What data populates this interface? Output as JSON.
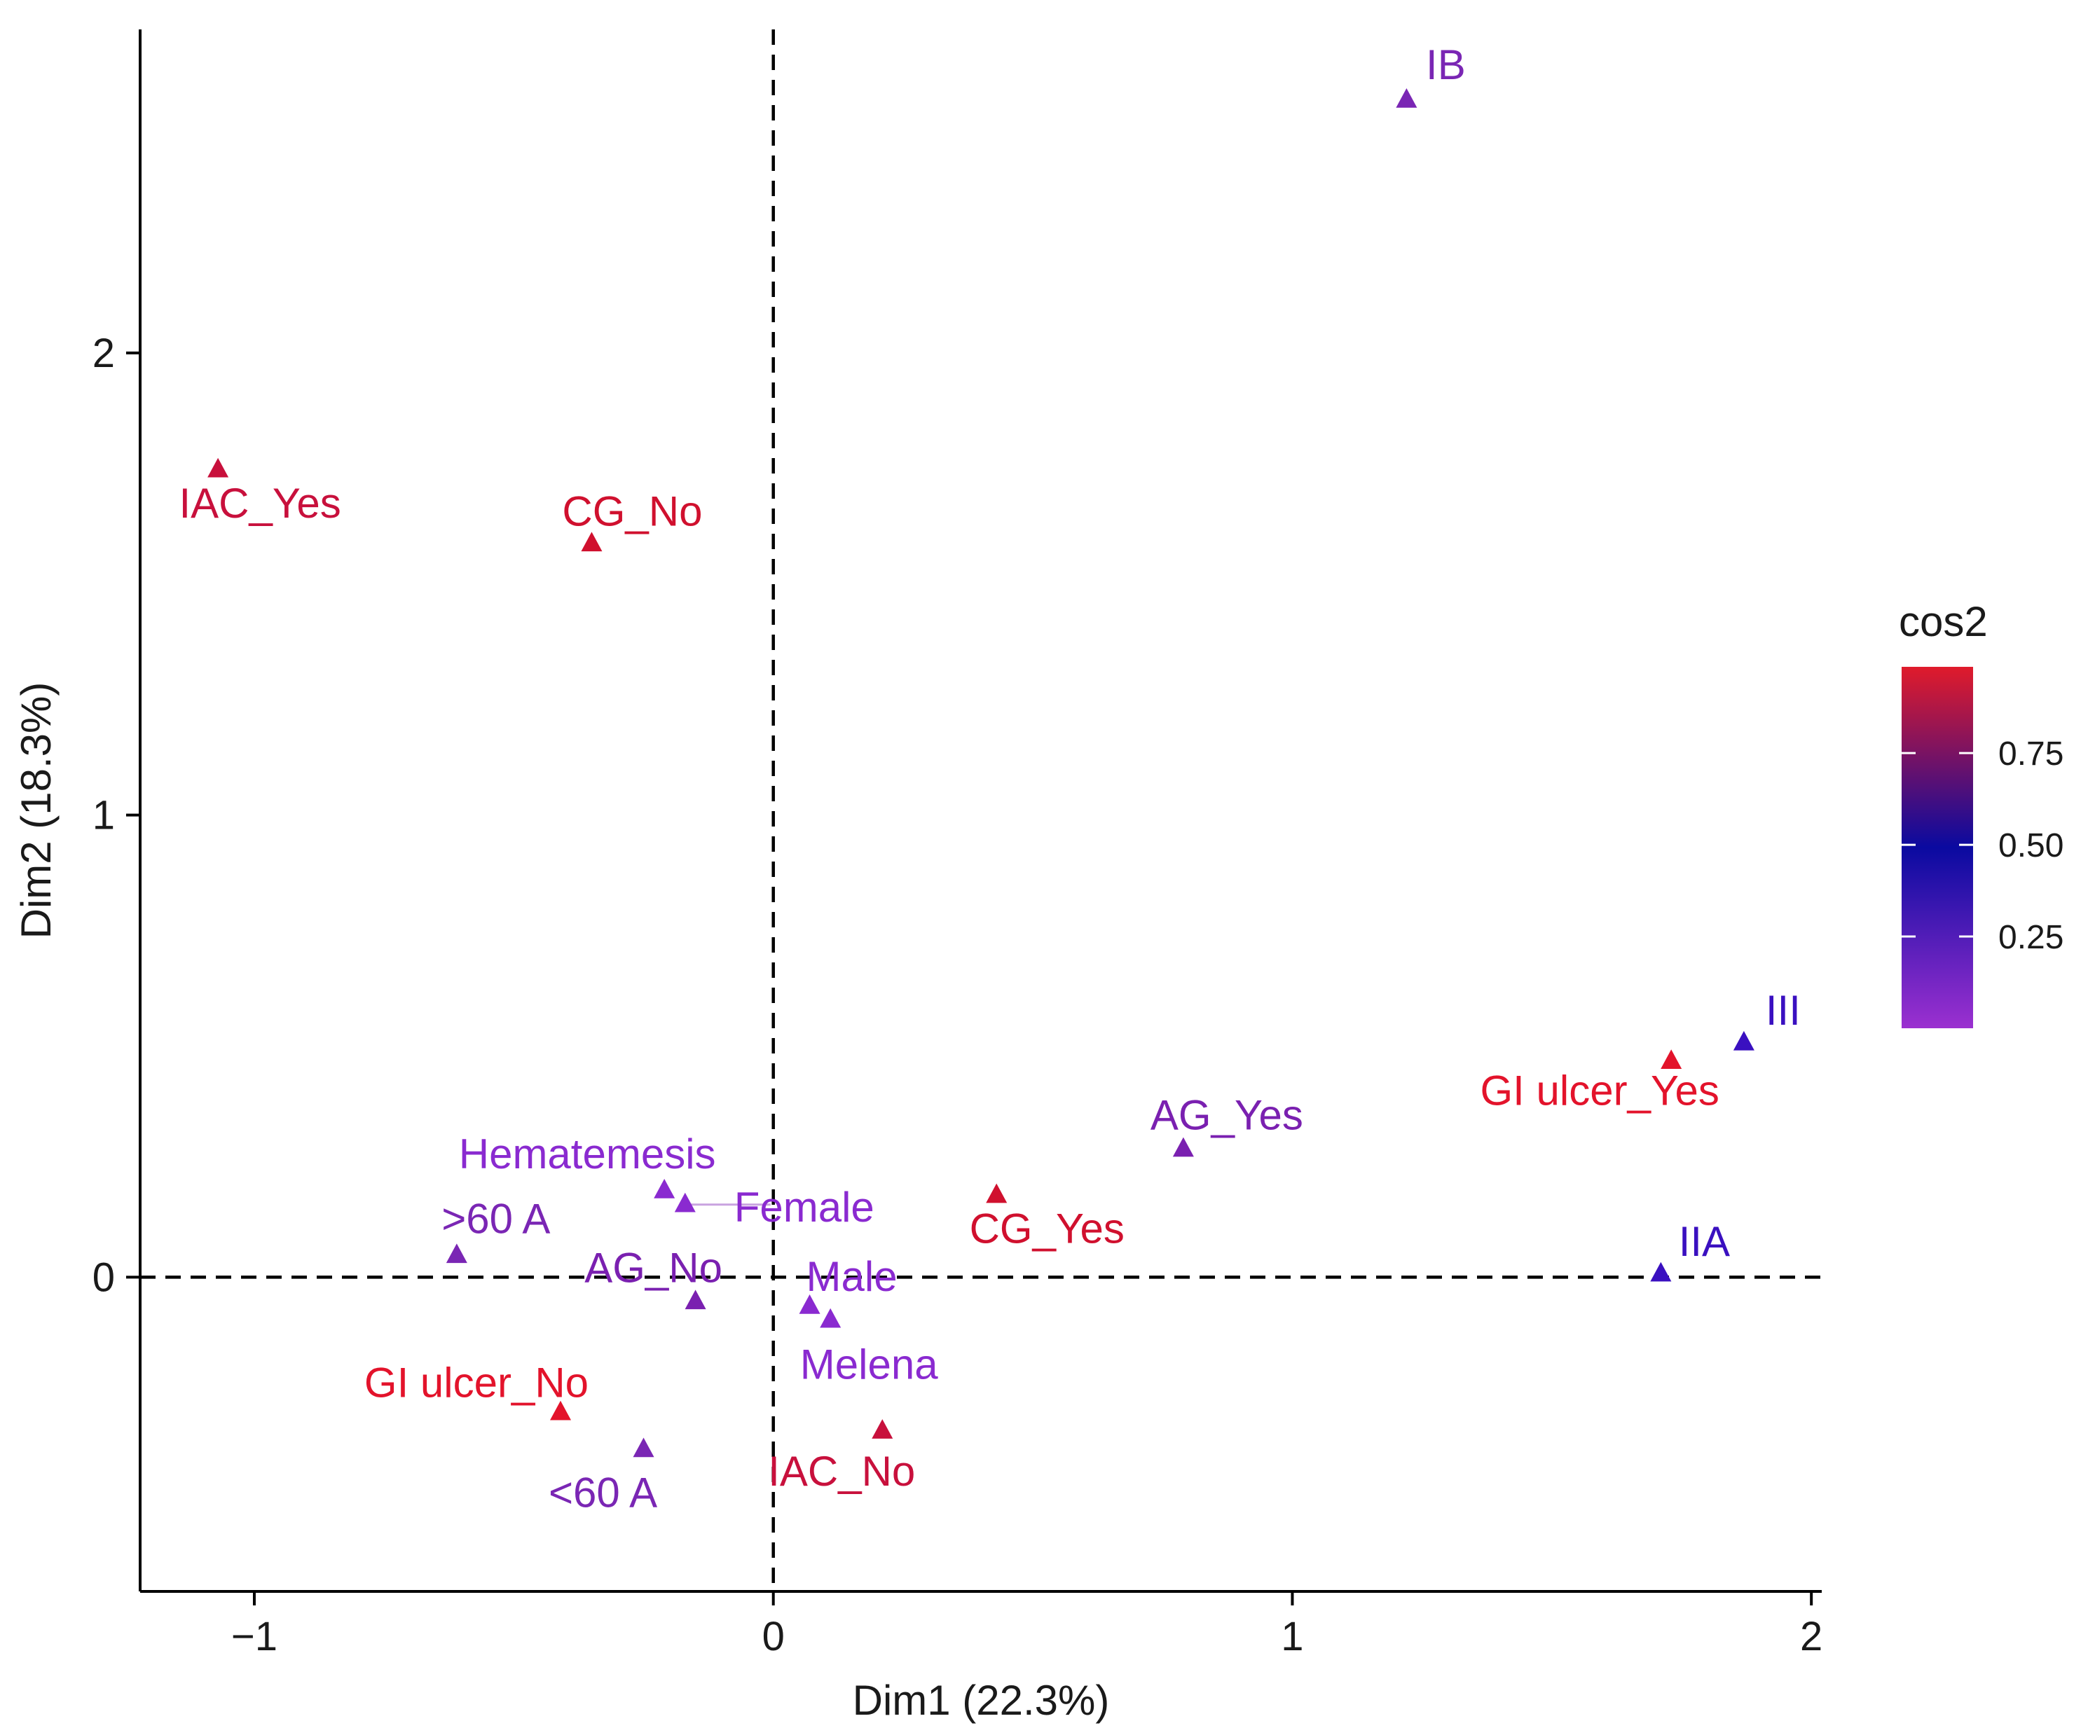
{
  "chart_data": {
    "type": "scatter",
    "xlabel": "Dim1 (22.3%)",
    "ylabel": "Dim2 (18.3%)",
    "xlim": [
      -1.22,
      2.02
    ],
    "ylim": [
      -0.68,
      2.7
    ],
    "x_ticks": [
      -1,
      0,
      1,
      2
    ],
    "x_tick_labels": [
      "−1",
      "0",
      "1",
      "2"
    ],
    "y_ticks": [
      0,
      1,
      2
    ],
    "y_tick_labels": [
      "0",
      "1",
      "2"
    ],
    "reference_lines": {
      "x": 0,
      "y": 0,
      "style": "dashed"
    },
    "grid": false,
    "points": [
      {
        "label": "IB",
        "x": 1.22,
        "y": 2.55,
        "cos2": 0.35,
        "color": "#7a26b4"
      },
      {
        "label": "IAC_Yes",
        "x": -1.07,
        "y": 1.75,
        "cos2": 0.9,
        "color": "#c8103c"
      },
      {
        "label": "CG_No",
        "x": -0.35,
        "y": 1.59,
        "cos2": 0.92,
        "color": "#d0102e"
      },
      {
        "label": "III",
        "x": 1.87,
        "y": 0.51,
        "cos2": 0.55,
        "color": "#3a10c0"
      },
      {
        "label": "GI ulcer_Yes",
        "x": 1.73,
        "y": 0.47,
        "cos2": 0.98,
        "color": "#e3132b"
      },
      {
        "label": "AG_Yes",
        "x": 0.79,
        "y": 0.28,
        "cos2": 0.38,
        "color": "#7a20b0"
      },
      {
        "label": "CG_Yes",
        "x": 0.43,
        "y": 0.18,
        "cos2": 0.9,
        "color": "#d0102e"
      },
      {
        "label": "Hematemesis",
        "x": -0.21,
        "y": 0.19,
        "cos2": 0.15,
        "color": "#8a2ad0"
      },
      {
        "label": "Female",
        "x": -0.17,
        "y": 0.16,
        "cos2": 0.15,
        "color": "#8a2ad0"
      },
      {
        "label": ">60 A",
        "x": -0.61,
        "y": 0.05,
        "cos2": 0.35,
        "color": "#7a26b4"
      },
      {
        "label": "IIA",
        "x": 1.71,
        "y": 0.01,
        "cos2": 0.5,
        "color": "#3a10c0"
      },
      {
        "label": "AG_No",
        "x": -0.15,
        "y": -0.05,
        "cos2": 0.38,
        "color": "#7a20b0"
      },
      {
        "label": "Male",
        "x": 0.07,
        "y": -0.06,
        "cos2": 0.15,
        "color": "#8a2ad0"
      },
      {
        "label": "Melena",
        "x": 0.11,
        "y": -0.09,
        "cos2": 0.15,
        "color": "#8a2ad0"
      },
      {
        "label": "GI ulcer_No",
        "x": -0.41,
        "y": -0.29,
        "cos2": 0.98,
        "color": "#e3132b"
      },
      {
        "label": "IAC_No",
        "x": 0.21,
        "y": -0.33,
        "cos2": 0.9,
        "color": "#c8103c"
      },
      {
        "label": "<60 A",
        "x": -0.25,
        "y": -0.37,
        "cos2": 0.35,
        "color": "#7a26b4"
      }
    ],
    "legend": {
      "title": "cos2",
      "placement": "right",
      "tick_values": [
        0.75,
        0.5,
        0.25
      ],
      "tick_labels": [
        "0.75",
        "0.50",
        "0.25"
      ],
      "gradient_colors": [
        "#9b30d0",
        "#0a0aa0",
        "#e01b2b"
      ]
    }
  }
}
